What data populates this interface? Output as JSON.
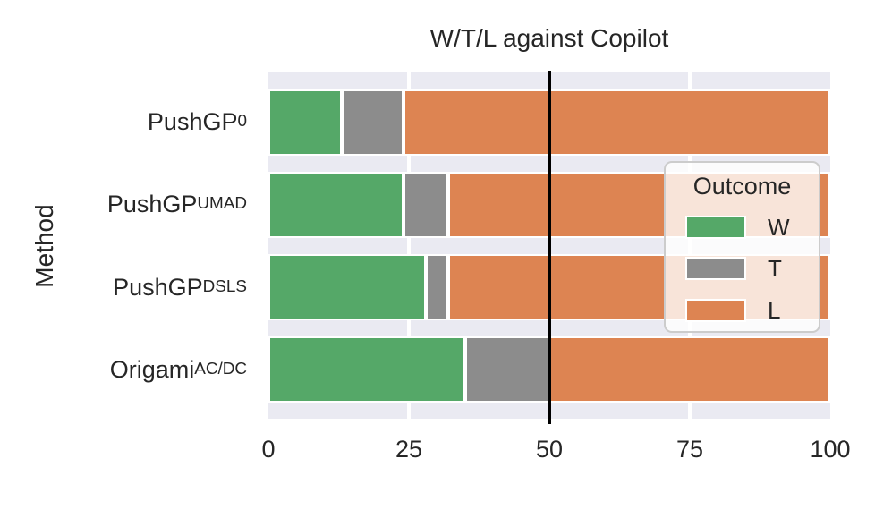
{
  "chart_data": {
    "type": "bar",
    "orientation": "horizontal",
    "stacked": true,
    "title": "W/T/L against Copilot",
    "xlabel": "",
    "ylabel": "Method",
    "xlim": [
      0,
      100
    ],
    "xticks": [
      "0",
      "25",
      "50",
      "75",
      "100"
    ],
    "grid": "on",
    "categories": [
      {
        "base": "PushGP",
        "sub": "0"
      },
      {
        "base": "PushGP",
        "sub": "UMAD"
      },
      {
        "base": "PushGP",
        "sub": "DSLS"
      },
      {
        "base": "Origami",
        "sub": "AC/DC"
      }
    ],
    "series": [
      {
        "name": "W",
        "color": "#55a868",
        "values": [
          13,
          24,
          28,
          35
        ]
      },
      {
        "name": "T",
        "color": "#8c8c8c",
        "values": [
          11,
          8,
          4,
          15
        ]
      },
      {
        "name": "L",
        "color": "#dd8452",
        "values": [
          76,
          68,
          68,
          50
        ]
      }
    ],
    "reference_line": {
      "x": 50,
      "color": "#000000"
    },
    "legend": {
      "title": "Outcome",
      "entries": [
        "W",
        "T",
        "L"
      ],
      "position": "right"
    },
    "colors": {
      "plot_background": "#eaeaf2",
      "figure_background": "#ffffff",
      "gridline": "#ffffff",
      "text": "#262626"
    }
  }
}
